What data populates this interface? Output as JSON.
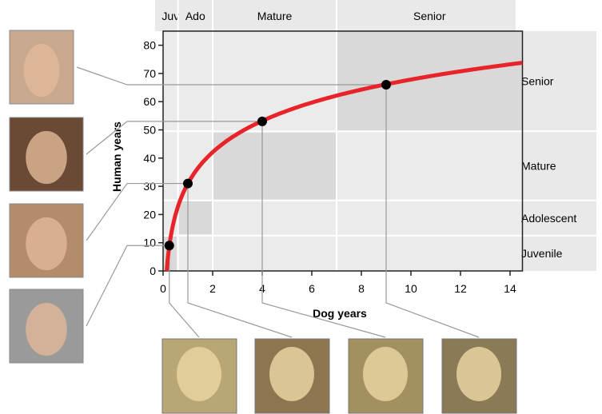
{
  "chart_data": {
    "type": "line",
    "xlabel": "Dog years",
    "ylabel": "Human years",
    "xlim": [
      0,
      14.5
    ],
    "ylim": [
      0,
      85
    ],
    "xticks": [
      0,
      2,
      4,
      6,
      8,
      10,
      12,
      14
    ],
    "yticks": [
      0,
      10,
      20,
      30,
      40,
      50,
      60,
      70,
      80
    ],
    "curve": {
      "formula": "human = 16*ln(dog)+31",
      "color": "#e8242a"
    },
    "points": [
      {
        "x": 0.25,
        "y": 9
      },
      {
        "x": 1,
        "y": 31
      },
      {
        "x": 4,
        "y": 53
      },
      {
        "x": 9,
        "y": 66
      }
    ],
    "dog_stages": [
      {
        "label": "Juv",
        "from": 0,
        "to": 0.6
      },
      {
        "label": "Ado",
        "from": 0.6,
        "to": 2
      },
      {
        "label": "Mature",
        "from": 2,
        "to": 7
      },
      {
        "label": "Senior",
        "from": 7,
        "to": 14.5
      }
    ],
    "human_stages": [
      {
        "label": "Juvenile",
        "from": 0,
        "to": 12.5
      },
      {
        "label": "Adolescent",
        "from": 12.5,
        "to": 25
      },
      {
        "label": "Mature",
        "from": 25,
        "to": 49.5
      },
      {
        "label": "Senior",
        "from": 49.5,
        "to": 85
      }
    ]
  },
  "photos": {
    "human": [
      "human-age-70",
      "human-age-50",
      "human-age-30",
      "human-age-10"
    ],
    "dog": [
      "puppy",
      "young-dog",
      "adult-dog",
      "senior-dog"
    ]
  }
}
